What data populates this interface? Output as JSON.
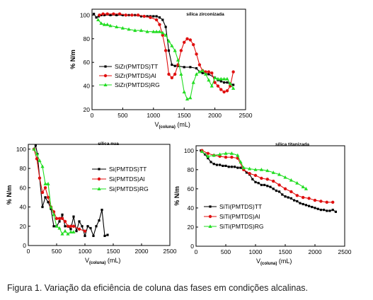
{
  "caption": "Figura 1. Variação da eficiência de coluna das fases em condições alcalinas.",
  "chart_data": [
    {
      "type": "line",
      "title": "sílica zirconizada",
      "xlabel_main": "V",
      "xlabel_sub": "(coluna)",
      "xlabel_unit": "(mL)",
      "ylabel": "% N/m",
      "xlim": [
        0,
        2500
      ],
      "ylim": [
        20,
        105
      ],
      "xticks": [
        0,
        500,
        1000,
        1500,
        2000,
        2500
      ],
      "yticks": [
        20,
        40,
        60,
        80,
        100
      ],
      "legend_position": "center-left",
      "series": [
        {
          "name": "SiZr(PMTDS)TT",
          "color": "#000000",
          "marker": "square",
          "x": [
            30,
            70,
            110,
            150,
            200,
            300,
            400,
            500,
            600,
            700,
            800,
            900,
            950,
            1000,
            1050,
            1100,
            1150,
            1200,
            1250,
            1300,
            1350,
            1400,
            1500,
            1600,
            1700,
            1750,
            1800,
            1900,
            2000,
            2050,
            2100,
            2150,
            2200,
            2250,
            2300
          ],
          "y": [
            101,
            98,
            99,
            100,
            100,
            100,
            100,
            100,
            100,
            100,
            99,
            99,
            99,
            99,
            99,
            98,
            96,
            90,
            70,
            58,
            57,
            57,
            56,
            56,
            55,
            52,
            51,
            50,
            47,
            45,
            44,
            43,
            43,
            42,
            41
          ]
        },
        {
          "name": "SiZr(PMTDS)Al",
          "color": "#e01010",
          "marker": "circle",
          "x": [
            120,
            180,
            250,
            350,
            450,
            550,
            650,
            750,
            850,
            950,
            1050,
            1100,
            1150,
            1200,
            1250,
            1300,
            1350,
            1400,
            1450,
            1500,
            1550,
            1600,
            1650,
            1700,
            1750,
            1800,
            1850,
            1900,
            1950,
            2000,
            2050,
            2100,
            2150,
            2200,
            2250,
            2300
          ],
          "y": [
            100,
            101,
            101,
            101,
            101,
            100,
            100,
            100,
            99,
            98,
            96,
            92,
            83,
            70,
            50,
            47,
            50,
            58,
            70,
            77,
            80,
            79,
            75,
            67,
            58,
            53,
            52,
            52,
            51,
            43,
            40,
            37,
            35,
            36,
            40,
            52
          ]
        },
        {
          "name": "SiZr(PMTDS)RG",
          "color": "#22dd22",
          "marker": "triangle",
          "x": [
            100,
            150,
            200,
            250,
            300,
            400,
            500,
            600,
            700,
            800,
            900,
            1000,
            1050,
            1100,
            1150,
            1200,
            1250,
            1300,
            1350,
            1400,
            1450,
            1500,
            1550,
            1600,
            1650,
            1700,
            1750,
            1800,
            1850,
            1900,
            1950,
            2000,
            2050,
            2100,
            2150,
            2200,
            2250,
            2300
          ],
          "y": [
            96,
            93,
            92,
            92,
            91,
            90,
            89,
            88,
            87,
            87,
            86,
            86,
            86,
            86,
            85,
            83,
            78,
            74,
            70,
            62,
            50,
            35,
            29,
            30,
            43,
            50,
            52,
            53,
            50,
            45,
            40,
            47,
            46,
            46,
            46,
            46,
            42,
            38
          ]
        }
      ]
    },
    {
      "type": "line",
      "title": "sílica nua",
      "xlabel_main": "V",
      "xlabel_sub": "(coluna)",
      "xlabel_unit": "(mL)",
      "ylabel": "% N/m",
      "xlim": [
        0,
        2500
      ],
      "ylim": [
        0,
        105
      ],
      "xticks": [
        0,
        500,
        1000,
        1500,
        2000,
        2500
      ],
      "yticks": [
        0,
        20,
        40,
        60,
        80,
        100
      ],
      "legend_position": "right",
      "series": [
        {
          "name": "Si(PMTDS)TT",
          "color": "#000000",
          "marker": "square",
          "x": [
            100,
            130,
            160,
            200,
            250,
            300,
            350,
            400,
            450,
            500,
            550,
            600,
            650,
            700,
            750,
            800,
            850,
            900,
            950,
            1000,
            1050,
            1100,
            1150,
            1200,
            1250,
            1300,
            1350,
            1400
          ],
          "y": [
            100,
            104,
            95,
            70,
            40,
            50,
            45,
            38,
            20,
            20,
            25,
            32,
            20,
            20,
            17,
            30,
            15,
            25,
            20,
            10,
            20,
            18,
            10,
            20,
            26,
            37,
            10,
            11
          ]
        },
        {
          "name": "Si(PMTDS)Al",
          "color": "#e01010",
          "marker": "circle",
          "x": [
            100,
            150,
            200,
            250,
            300,
            350,
            400,
            450,
            500,
            550,
            600,
            650,
            700,
            750,
            800,
            900,
            1000
          ],
          "y": [
            100,
            90,
            70,
            55,
            60,
            50,
            40,
            35,
            28,
            28,
            28,
            25,
            20,
            20,
            20,
            17,
            15
          ]
        },
        {
          "name": "Si(PMTDS)RG",
          "color": "#22dd22",
          "marker": "triangle",
          "x": [
            100,
            150,
            200,
            250,
            300,
            350,
            400,
            450,
            500,
            550,
            600,
            650,
            700,
            750,
            800
          ],
          "y": [
            100,
            95,
            88,
            82,
            64,
            64,
            40,
            32,
            20,
            18,
            12,
            15,
            12,
            14,
            14
          ]
        }
      ]
    },
    {
      "type": "line",
      "title": "sílica titanizada",
      "xlabel_main": "V",
      "xlabel_sub": "(coluna)",
      "xlabel_unit": "(mL)",
      "ylabel": "% N/m",
      "xlim": [
        0,
        2500
      ],
      "ylim": [
        0,
        105
      ],
      "xticks": [
        0,
        500,
        1000,
        1500,
        2000,
        2500
      ],
      "yticks": [
        0,
        20,
        40,
        60,
        80,
        100
      ],
      "legend_position": "bottom-left",
      "series": [
        {
          "name": "SiTi(PMTDS)TT",
          "color": "#000000",
          "marker": "square",
          "x": [
            80,
            150,
            200,
            250,
            300,
            350,
            400,
            450,
            500,
            550,
            600,
            650,
            700,
            750,
            800,
            850,
            900,
            950,
            1000,
            1050,
            1100,
            1150,
            1200,
            1250,
            1300,
            1350,
            1400,
            1450,
            1500,
            1550,
            1600,
            1650,
            1700,
            1750,
            1800,
            1850,
            1900,
            1950,
            2000,
            2050,
            2100,
            2150,
            2200,
            2250,
            2300,
            2350
          ],
          "y": [
            100,
            96,
            92,
            88,
            86,
            85,
            85,
            84,
            84,
            83,
            83,
            83,
            82,
            82,
            80,
            77,
            75,
            70,
            67,
            66,
            64,
            64,
            63,
            62,
            60,
            58,
            57,
            54,
            52,
            51,
            50,
            48,
            47,
            45,
            44,
            43,
            42,
            41,
            40,
            39,
            38,
            38,
            37,
            37,
            38,
            36
          ]
        },
        {
          "name": "SiTi(PMTDS)Al",
          "color": "#e01010",
          "marker": "circle",
          "x": [
            100,
            200,
            300,
            400,
            500,
            600,
            700,
            800,
            900,
            1000,
            1100,
            1200,
            1300,
            1400,
            1500,
            1600,
            1700,
            1800,
            1900,
            2000,
            2100,
            2200,
            2300
          ],
          "y": [
            100,
            97,
            95,
            94,
            93,
            93,
            92,
            80,
            76,
            74,
            71,
            70,
            68,
            64,
            60,
            57,
            53,
            51,
            50,
            48,
            47,
            46,
            46
          ]
        },
        {
          "name": "SiTi(PMTDS)RG",
          "color": "#22dd22",
          "marker": "triangle",
          "x": [
            100,
            200,
            300,
            400,
            500,
            600,
            700,
            750,
            800,
            900,
            1000,
            1100,
            1200,
            1300,
            1400,
            1500,
            1600,
            1700,
            1800,
            1850
          ],
          "y": [
            99,
            94,
            95,
            96,
            97,
            97,
            95,
            88,
            82,
            81,
            80,
            80,
            79,
            77,
            75,
            72,
            69,
            66,
            62,
            60
          ]
        }
      ]
    }
  ]
}
